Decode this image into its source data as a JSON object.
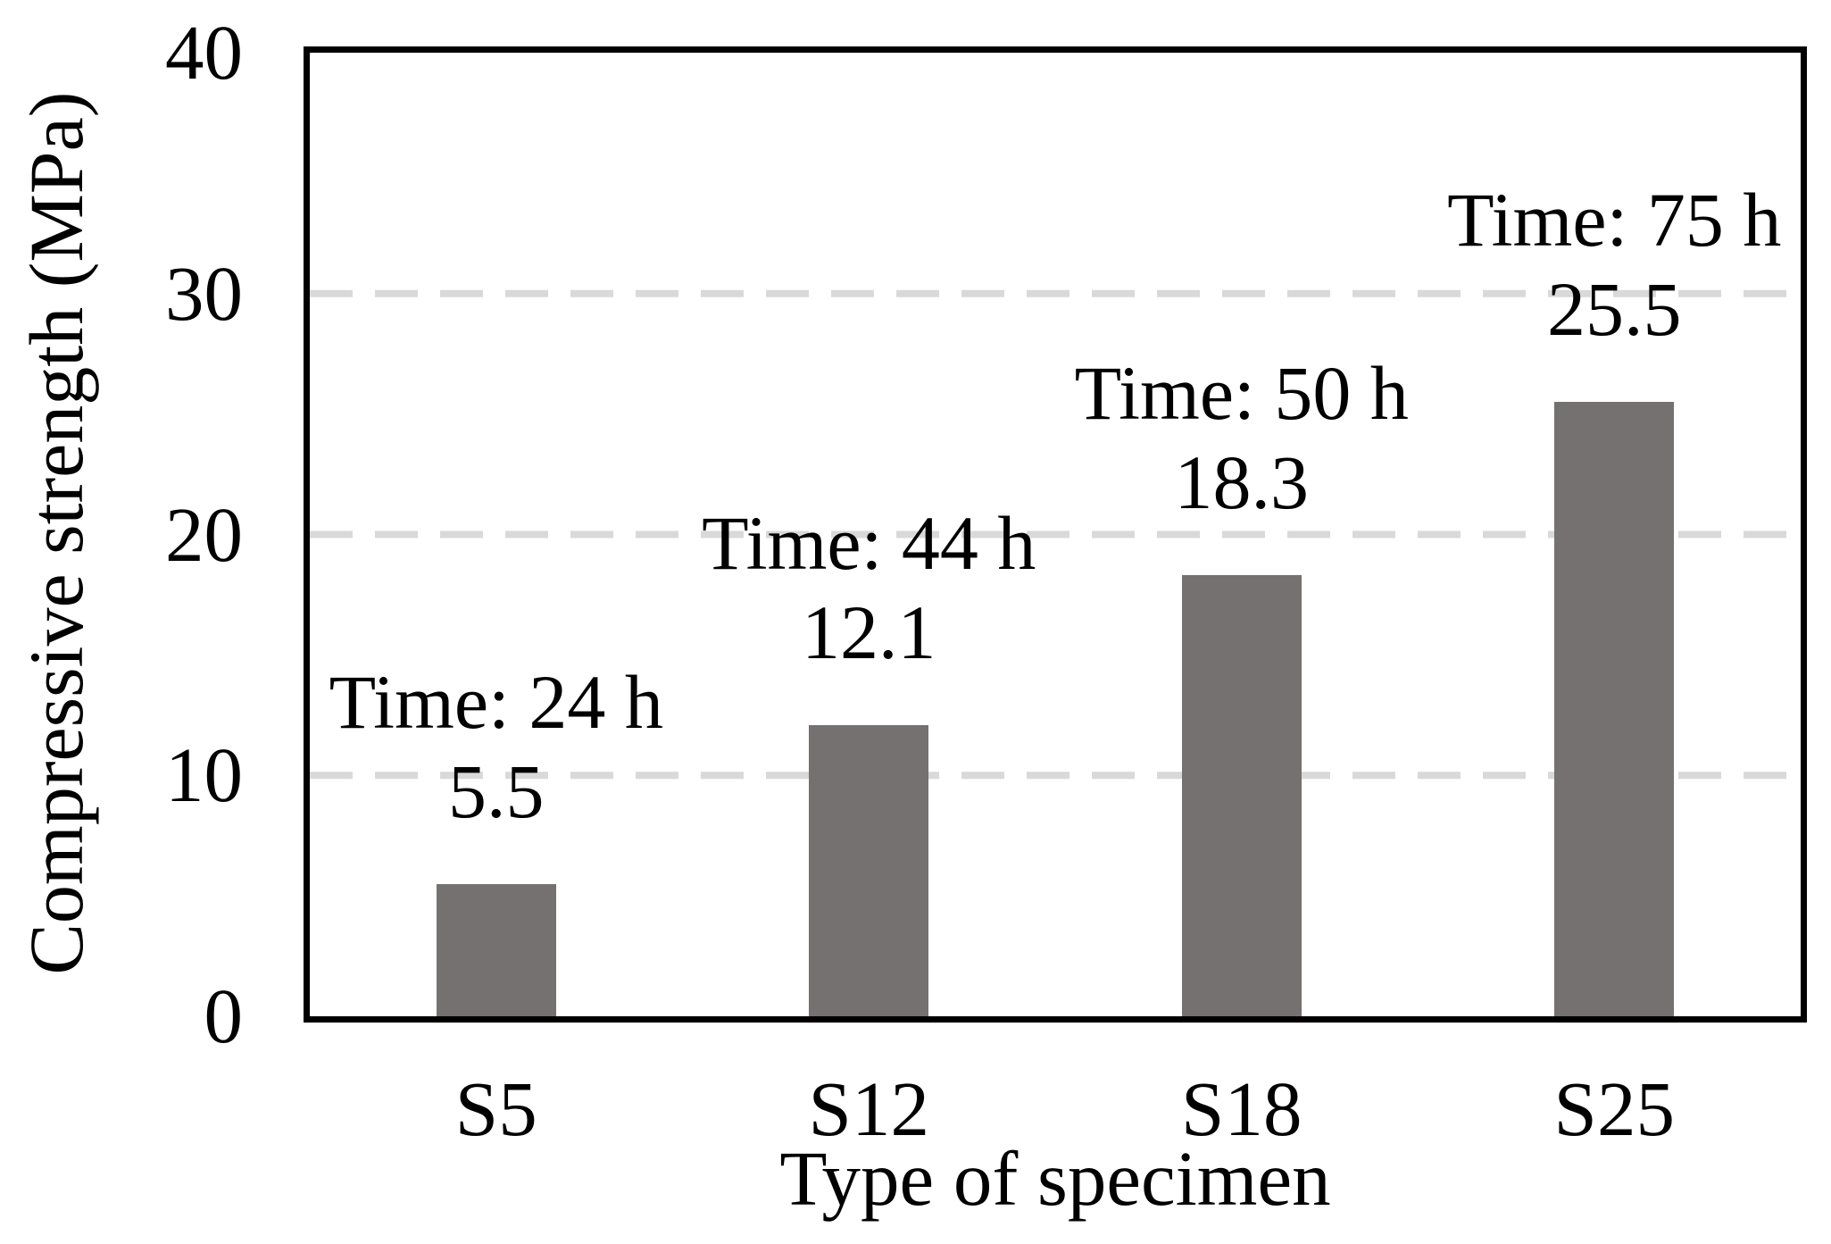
{
  "chart_data": {
    "type": "bar",
    "categories": [
      "S5",
      "S12",
      "S18",
      "S25"
    ],
    "values": [
      5.5,
      12.1,
      18.3,
      25.5
    ],
    "annotations": [
      {
        "time_label": "Time: 24 h",
        "value_label": "5.5"
      },
      {
        "time_label": "Time: 44 h",
        "value_label": "12.1"
      },
      {
        "time_label": "Time: 50 h",
        "value_label": "18.3"
      },
      {
        "time_label": "Time: 75 h",
        "value_label": "25.5"
      }
    ],
    "title": "",
    "xlabel": "Type of specimen",
    "ylabel": "Compressive strength (MPa)",
    "ylim": [
      0,
      40
    ],
    "yticks": [
      "0",
      "10",
      "20",
      "30",
      "40"
    ],
    "gridlines_at": [
      10,
      20,
      30
    ],
    "grid_style": "horizontal dashed",
    "legend_position": "none",
    "colors": {
      "bar": "#747170",
      "gridline": "#d9d9d9",
      "frame": "#000000",
      "text": "#000000",
      "background": "#ffffff"
    }
  }
}
